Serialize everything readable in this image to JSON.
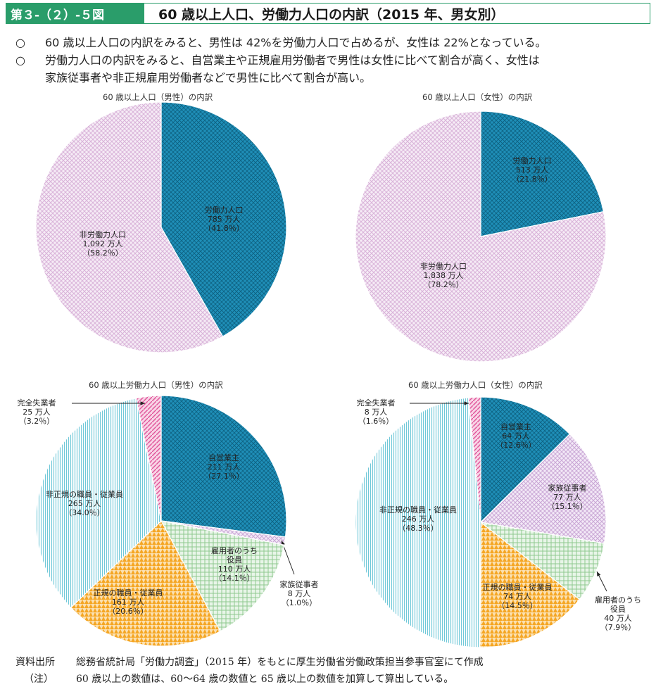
{
  "header": {
    "figure_number": "第３-（２）-５図",
    "title": "60 歳以上人口、労働力人口の内訳（2015 年、男女別）"
  },
  "summary": {
    "bullet": "○",
    "line1": "60 歳以上人口の内訳をみると、男性は 42%を労働力人口で占めるが、女性は 22%となっている。",
    "line2a": "労働力人口の内訳をみると、自営業主や正規雇用労働者で男性は女性に比べて割合が高く、女性は",
    "line2b": "家族従事者や非正規雇用労働者などで男性に比べて割合が高い。"
  },
  "colors": {
    "accent": "#2a9d6a",
    "labor": "#1f8fb8",
    "nonlabor": "#d9b3d9",
    "self": "#1f8fb8",
    "family": "#caa8d6",
    "officer": "#8fc98f",
    "regular": "#f5a623",
    "nonregular": "#6fc8d8",
    "unemployed": "#e0559a"
  },
  "chart_data": [
    {
      "type": "pie",
      "title": "60 歳以上人口（男性）の内訳",
      "slices": [
        {
          "key": "labor",
          "name": "労働力人口",
          "value": 785,
          "value_label": "785 万人",
          "pct_label": "（41.8％）"
        },
        {
          "key": "nonlabor",
          "name": "非労働力人口",
          "value": 1092,
          "value_label": "1,092 万人",
          "pct_label": "（58.2％）"
        }
      ]
    },
    {
      "type": "pie",
      "title": "60 歳以上人口（女性）の内訳",
      "slices": [
        {
          "key": "labor",
          "name": "労働力人口",
          "value": 513,
          "value_label": "513 万人",
          "pct_label": "（21.8％）"
        },
        {
          "key": "nonlabor",
          "name": "非労働力人口",
          "value": 1838,
          "value_label": "1,838 万人",
          "pct_label": "（78.2％）"
        }
      ]
    },
    {
      "type": "pie",
      "title": "60 歳以上労働力人口（男性）の内訳",
      "slices": [
        {
          "key": "self",
          "name": "自営業主",
          "value": 211,
          "value_label": "211 万人",
          "pct_label": "（27.1％）"
        },
        {
          "key": "family",
          "name": "家族従事者",
          "value": 8,
          "value_label": "8 万人",
          "pct_label": "（1.0％）"
        },
        {
          "key": "officer",
          "name": "雇用者のうち|役員",
          "value": 110,
          "value_label": "110 万人",
          "pct_label": "（14.1％）"
        },
        {
          "key": "regular",
          "name": "正規の職員・従業員",
          "value": 161,
          "value_label": "161 万人",
          "pct_label": "（20.6％）"
        },
        {
          "key": "nonregular",
          "name": "非正規の職員・従業員",
          "value": 265,
          "value_label": "265 万人",
          "pct_label": "（34.0％）"
        },
        {
          "key": "unemployed",
          "name": "完全失業者",
          "value": 25,
          "value_label": "25 万人",
          "pct_label": "（3.2％）"
        }
      ]
    },
    {
      "type": "pie",
      "title": "60 歳以上労働力人口（女性）の内訳",
      "slices": [
        {
          "key": "self",
          "name": "自営業主",
          "value": 64,
          "value_label": "64 万人",
          "pct_label": "（12.6％）"
        },
        {
          "key": "family",
          "name": "家族従事者",
          "value": 77,
          "value_label": "77 万人",
          "pct_label": "（15.1％）"
        },
        {
          "key": "officer",
          "name": "雇用者のうち|役員",
          "value": 40,
          "value_label": "40 万人",
          "pct_label": "（7.9％）"
        },
        {
          "key": "regular",
          "name": "正規の職員・従業員",
          "value": 74,
          "value_label": "74 万人",
          "pct_label": "（14.5％）"
        },
        {
          "key": "nonregular",
          "name": "非正規の職員・従業員",
          "value": 246,
          "value_label": "246 万人",
          "pct_label": "（48.3％）"
        },
        {
          "key": "unemployed",
          "name": "完全失業者",
          "value": 8,
          "value_label": "8 万人",
          "pct_label": "（1.6％）"
        }
      ]
    }
  ],
  "footer": {
    "source_label": "資料出所",
    "source_text": "総務省統計局「労働力調査」（2015 年）をもとに厚生労働省労働政策担当参事官室にて作成",
    "note_label": "（注）",
    "note_text": "60 歳以上の数値は、60～64 歳の数値と 65 歳以上の数値を加算して算出している。"
  }
}
